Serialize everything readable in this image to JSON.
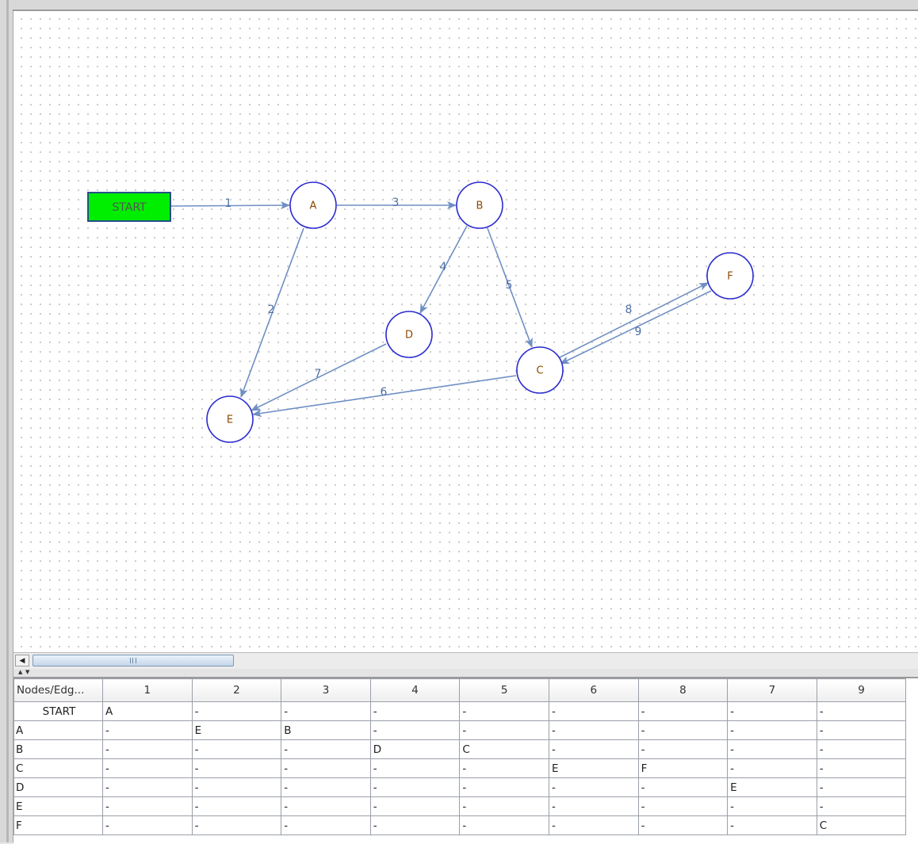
{
  "graph": {
    "nodes": [
      {
        "id": "START",
        "label": "START",
        "shape": "rect",
        "fill": "#00ee00",
        "stroke": "#1d3f8a"
      },
      {
        "id": "A",
        "label": "A",
        "shape": "circle"
      },
      {
        "id": "B",
        "label": "B",
        "shape": "circle"
      },
      {
        "id": "C",
        "label": "C",
        "shape": "circle"
      },
      {
        "id": "D",
        "label": "D",
        "shape": "circle"
      },
      {
        "id": "E",
        "label": "E",
        "shape": "circle"
      },
      {
        "id": "F",
        "label": "F",
        "shape": "circle"
      }
    ],
    "edges": [
      {
        "label": "1",
        "from": "START",
        "to": "A"
      },
      {
        "label": "2",
        "from": "A",
        "to": "E"
      },
      {
        "label": "3",
        "from": "A",
        "to": "B"
      },
      {
        "label": "4",
        "from": "B",
        "to": "D"
      },
      {
        "label": "5",
        "from": "B",
        "to": "C"
      },
      {
        "label": "6",
        "from": "C",
        "to": "E"
      },
      {
        "label": "7",
        "from": "D",
        "to": "E"
      },
      {
        "label": "8",
        "from": "C",
        "to": "F"
      },
      {
        "label": "9",
        "from": "F",
        "to": "C"
      }
    ],
    "colors": {
      "node_stroke": "#2a2ad0",
      "node_label": "#8b4a00",
      "edge": "#6f8fc4",
      "edge_label": "#4f6fa4",
      "start_label": "#555555"
    }
  },
  "table": {
    "header_corner": "Nodes/Edg...",
    "columns": [
      "1",
      "2",
      "3",
      "4",
      "5",
      "6",
      "8",
      "7",
      "9"
    ],
    "rows": [
      {
        "node": "START",
        "cells": [
          "A",
          "-",
          "-",
          "-",
          "-",
          "-",
          "-",
          "-",
          "-"
        ]
      },
      {
        "node": "A",
        "cells": [
          "-",
          "E",
          "B",
          "-",
          "-",
          "-",
          "-",
          "-",
          "-"
        ]
      },
      {
        "node": "B",
        "cells": [
          "-",
          "-",
          "-",
          "D",
          "C",
          "-",
          "-",
          "-",
          "-"
        ]
      },
      {
        "node": "C",
        "cells": [
          "-",
          "-",
          "-",
          "-",
          "-",
          "E",
          "F",
          "-",
          "-"
        ]
      },
      {
        "node": "D",
        "cells": [
          "-",
          "-",
          "-",
          "-",
          "-",
          "-",
          "-",
          "E",
          "-"
        ]
      },
      {
        "node": "E",
        "cells": [
          "-",
          "-",
          "-",
          "-",
          "-",
          "-",
          "-",
          "-",
          "-"
        ]
      },
      {
        "node": "F",
        "cells": [
          "-",
          "-",
          "-",
          "-",
          "-",
          "-",
          "-",
          "-",
          "C"
        ]
      }
    ]
  },
  "scrollbar": {
    "grip_icon": "scroll-grip-icon"
  }
}
